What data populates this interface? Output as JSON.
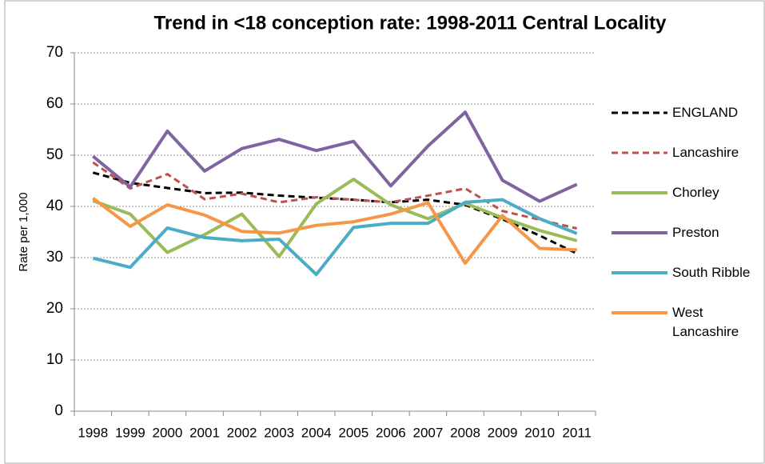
{
  "chart_data": {
    "type": "line",
    "title": "Trend in <18 conception rate: 1998-2011 Central Locality",
    "y_label": "Rate per 1,000",
    "categories": [
      "1998",
      "1999",
      "2000",
      "2001",
      "2002",
      "2003",
      "2004",
      "2005",
      "2006",
      "2007",
      "2008",
      "2009",
      "2010",
      "2011"
    ],
    "ylim": [
      0,
      70
    ],
    "yticks": [
      0,
      10,
      20,
      30,
      40,
      50,
      60,
      70
    ],
    "grid": true,
    "legend": "right",
    "series": [
      {
        "name": "ENGLAND",
        "color": "#000000",
        "style": "dashed",
        "values": [
          46.6,
          44.6,
          43.6,
          42.6,
          42.7,
          42.1,
          41.7,
          41.3,
          40.8,
          41.3,
          40.3,
          37.5,
          34.3,
          30.8
        ]
      },
      {
        "name": "Lancashire",
        "color": "#c0504d",
        "style": "dashed",
        "values": [
          48.6,
          43.5,
          46.3,
          41.4,
          42.5,
          40.8,
          41.8,
          41.3,
          40.8,
          42.1,
          43.5,
          39.1,
          37.4,
          35.7
        ]
      },
      {
        "name": "Chorley",
        "color": "#9bbb59",
        "style": "solid",
        "values": [
          41.1,
          38.5,
          31.0,
          34.5,
          38.5,
          30.2,
          40.5,
          45.3,
          40.3,
          37.6,
          40.6,
          37.8,
          35.3,
          33.3
        ]
      },
      {
        "name": "Preston",
        "color": "#8064a2",
        "style": "solid",
        "values": [
          49.8,
          43.8,
          54.7,
          46.9,
          51.3,
          53.1,
          50.9,
          52.7,
          44.0,
          51.8,
          58.4,
          45.1,
          41.0,
          44.3
        ]
      },
      {
        "name": "South Ribble",
        "color": "#4bacc6",
        "style": "solid",
        "values": [
          29.9,
          28.1,
          35.8,
          33.9,
          33.3,
          33.6,
          26.7,
          35.9,
          36.7,
          36.7,
          40.8,
          41.3,
          37.6,
          34.7
        ]
      },
      {
        "name": "West Lancashire",
        "color": "#f79646",
        "style": "solid",
        "values": [
          41.6,
          36.1,
          40.3,
          38.3,
          35.1,
          34.8,
          36.3,
          37.0,
          38.5,
          40.7,
          28.9,
          38.2,
          31.8,
          31.5
        ]
      }
    ]
  }
}
